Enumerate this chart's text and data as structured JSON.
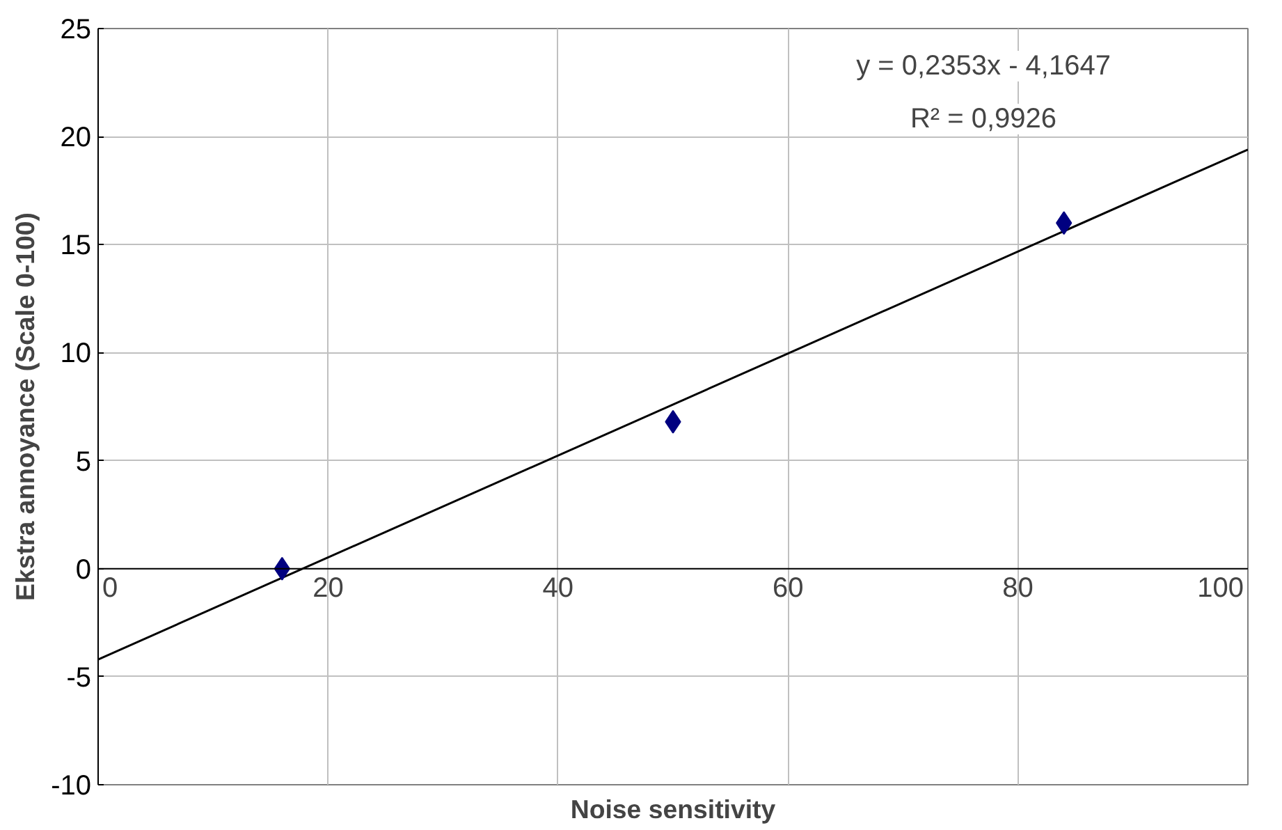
{
  "chart_data": {
    "type": "scatter",
    "xlabel": "Noise sensitivity",
    "ylabel": "Ekstra annoyance (Scale 0-100)",
    "xlim": [
      0,
      100
    ],
    "ylim": [
      -10,
      25
    ],
    "xticks": [
      0,
      20,
      40,
      60,
      80,
      100
    ],
    "yticks": [
      -10,
      -5,
      0,
      5,
      10,
      15,
      20,
      25
    ],
    "grid": true,
    "marker": "diamond",
    "series": [
      {
        "color": "#000080",
        "x": [
          16,
          50,
          84
        ],
        "values": [
          0,
          6.8,
          16
        ]
      },
      {
        "type": "line",
        "color": "#000000",
        "x": [
          0,
          100
        ],
        "values": [
          -4.2,
          19.4
        ],
        "line_style": "solid",
        "marker": "none"
      }
    ],
    "annotations": [
      "y = 0,2353x - 4,1647",
      "R² = 0,9926"
    ]
  }
}
